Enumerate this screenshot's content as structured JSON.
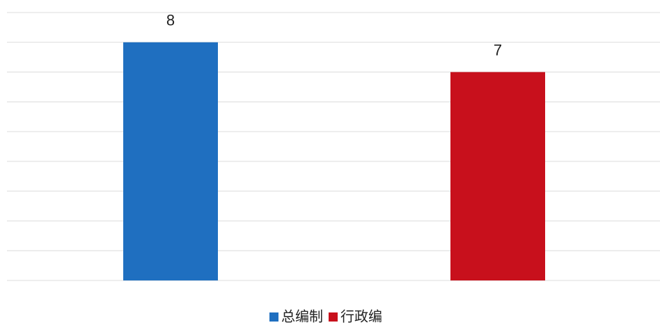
{
  "chart_data": {
    "type": "bar",
    "series": [
      {
        "name": "总编制",
        "color": "#1f6fc0",
        "values": [
          8
        ]
      },
      {
        "name": "行政编",
        "color": "#c8101c",
        "values": [
          7
        ]
      }
    ],
    "ylim": [
      0,
      9
    ],
    "yticks": [
      0,
      1,
      2,
      3,
      4,
      5,
      6,
      7,
      8,
      9
    ],
    "grid": true,
    "legend": "bottom"
  }
}
